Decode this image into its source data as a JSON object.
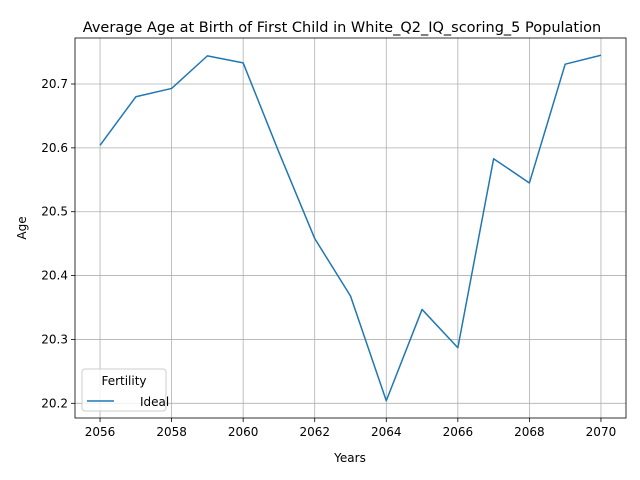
{
  "chart_data": {
    "type": "line",
    "title": "Average Age at Birth of First Child in White_Q2_IQ_scoring_5 Population",
    "xlabel": "Years",
    "ylabel": "Age",
    "x": [
      2056,
      2057,
      2058,
      2059,
      2060,
      2061,
      2062,
      2063,
      2064,
      2065,
      2066,
      2067,
      2068,
      2069,
      2070
    ],
    "series": [
      {
        "name": "Ideal",
        "color": "#1f77b4",
        "values": [
          20.604,
          20.68,
          20.693,
          20.744,
          20.733,
          20.593,
          20.458,
          20.368,
          20.204,
          20.347,
          20.287,
          20.583,
          20.545,
          20.731,
          20.745
        ]
      }
    ],
    "xlim": [
      2055.3,
      2070.7
    ],
    "ylim": [
      20.177,
      20.772
    ],
    "xticks": [
      2056,
      2058,
      2060,
      2062,
      2064,
      2066,
      2068,
      2070
    ],
    "yticks": [
      20.2,
      20.3,
      20.4,
      20.5,
      20.6,
      20.7
    ],
    "ytick_labels": [
      "20.2",
      "20.3",
      "20.4",
      "20.5",
      "20.6",
      "20.7"
    ],
    "grid": true,
    "legend": {
      "title": "Fertility",
      "placement": "lower-left"
    }
  }
}
